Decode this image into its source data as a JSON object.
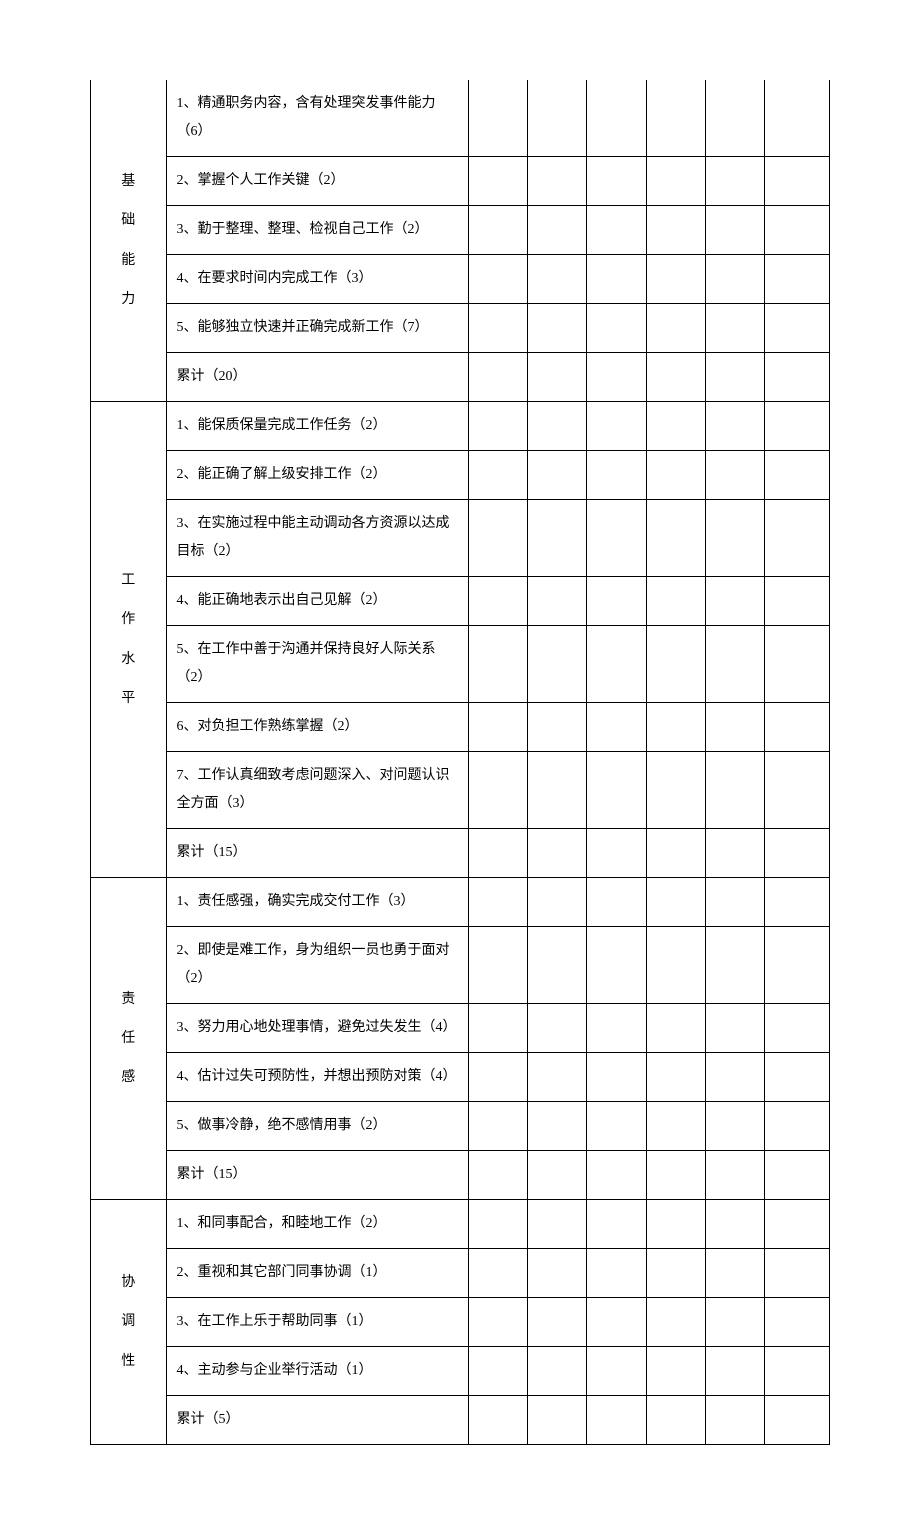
{
  "table": {
    "border_color": "#000000",
    "background_color": "#ffffff",
    "text_color": "#000000",
    "font_family": "SimSun",
    "font_size": 14,
    "sections": [
      {
        "category_chars": [
          "基",
          "础",
          "能",
          "力"
        ],
        "rows": [
          {
            "text": "1、精通职务内容，含有处理突发事件能力（6）"
          },
          {
            "text": "2、掌握个人工作关键（2）"
          },
          {
            "text": "3、勤于整理、整理、检视自己工作（2）"
          },
          {
            "text": "4、在要求时间内完成工作（3）"
          },
          {
            "text": "5、能够独立快速并正确完成新工作（7）"
          },
          {
            "text": "累计（20）"
          }
        ]
      },
      {
        "category_chars": [
          "工",
          "作",
          "水",
          "平"
        ],
        "rows": [
          {
            "text": "1、能保质保量完成工作任务（2）"
          },
          {
            "text": "2、能正确了解上级安排工作（2）"
          },
          {
            "text": "3、在实施过程中能主动调动各方资源以达成目标（2）"
          },
          {
            "text": "4、能正确地表示出自己见解（2）"
          },
          {
            "text": "5、在工作中善于沟通并保持良好人际关系（2）"
          },
          {
            "text": "6、对负担工作熟练掌握（2）"
          },
          {
            "text": "7、工作认真细致考虑问题深入、对问题认识全方面（3）"
          },
          {
            "text": "累计（15）"
          }
        ]
      },
      {
        "category_chars": [
          "责",
          "任",
          "感"
        ],
        "rows": [
          {
            "text": "1、责任感强，确实完成交付工作（3）"
          },
          {
            "text": "2、即使是难工作，身为组织一员也勇于面对（2）"
          },
          {
            "text": "3、努力用心地处理事情，避免过失发生（4）"
          },
          {
            "text": "4、估计过失可预防性，并想出预防对策（4）"
          },
          {
            "text": "5、做事冷静，绝不感情用事（2）"
          },
          {
            "text": "累计（15）"
          }
        ]
      },
      {
        "category_chars": [
          "协",
          "调",
          "性"
        ],
        "rows": [
          {
            "text": "1、和同事配合，和睦地工作（2）"
          },
          {
            "text": "2、重视和其它部门同事协调（1）"
          },
          {
            "text": "3、在工作上乐于帮助同事（1）"
          },
          {
            "text": "4、主动参与企业举行活动（1）"
          },
          {
            "text": "累计（5）"
          }
        ]
      }
    ],
    "score_columns": 6
  }
}
